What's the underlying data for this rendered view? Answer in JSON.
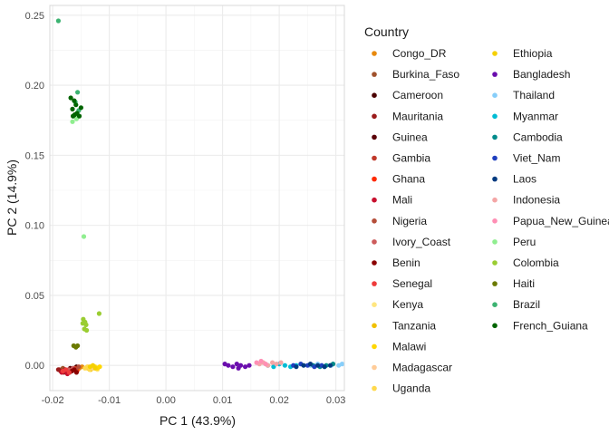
{
  "chart_data": {
    "type": "scatter",
    "xlabel": "PC 1 (43.9%)",
    "ylabel": "PC 2 (14.9%)",
    "xlim": [
      -0.0205,
      0.0315
    ],
    "ylim": [
      -0.018,
      0.257
    ],
    "x_ticks": [
      -0.02,
      -0.01,
      0.0,
      0.01,
      0.02,
      0.03
    ],
    "x_tick_labels": [
      "-0.02",
      "-0.01",
      "0.00",
      "0.01",
      "0.02",
      "0.03"
    ],
    "y_ticks": [
      0.0,
      0.05,
      0.1,
      0.15,
      0.2,
      0.25
    ],
    "y_tick_labels": [
      "0.00",
      "0.05",
      "0.10",
      "0.15",
      "0.20",
      "0.25"
    ],
    "grid": true,
    "legend_title": "Country",
    "legend_position": "right",
    "series": [
      {
        "name": "Congo_DR",
        "color": "#e8890c",
        "points": [
          [
            -0.0153,
            -0.002
          ],
          [
            -0.0148,
            -0.001
          ],
          [
            -0.0156,
            -0.003
          ]
        ]
      },
      {
        "name": "Burkina_Faso",
        "color": "#a0522d",
        "points": [
          [
            -0.0188,
            -0.003
          ],
          [
            -0.0182,
            -0.002
          ],
          [
            -0.0176,
            -0.004
          ]
        ]
      },
      {
        "name": "Cameroon",
        "color": "#4b0000",
        "points": [
          [
            -0.016,
            -0.002
          ],
          [
            -0.0158,
            -0.001
          ],
          [
            -0.0163,
            -0.003
          ]
        ]
      },
      {
        "name": "Mauritania",
        "color": "#9b1b1b",
        "points": [
          [
            -0.0186,
            -0.004
          ],
          [
            -0.018,
            -0.005
          ],
          [
            -0.019,
            -0.003
          ]
        ]
      },
      {
        "name": "Guinea",
        "color": "#5a0008",
        "points": [
          [
            -0.0178,
            -0.003
          ],
          [
            -0.0172,
            -0.004
          ],
          [
            -0.0169,
            -0.002
          ]
        ]
      },
      {
        "name": "Gambia",
        "color": "#c0392b",
        "points": [
          [
            -0.0175,
            -0.004
          ],
          [
            -0.017,
            -0.005
          ],
          [
            -0.0166,
            -0.003
          ]
        ]
      },
      {
        "name": "Ghana",
        "color": "#ff2a00",
        "points": [
          [
            -0.0165,
            -0.003
          ],
          [
            -0.0161,
            -0.002
          ],
          [
            -0.0157,
            -0.004
          ]
        ]
      },
      {
        "name": "Mali",
        "color": "#c8102e",
        "points": [
          [
            -0.0184,
            -0.005
          ],
          [
            -0.0179,
            -0.004
          ],
          [
            -0.0174,
            -0.006
          ]
        ]
      },
      {
        "name": "Nigeria",
        "color": "#b54e3a",
        "points": [
          [
            -0.0163,
            -0.002
          ],
          [
            -0.0159,
            -0.003
          ],
          [
            -0.0154,
            -0.001
          ]
        ]
      },
      {
        "name": "Ivory_Coast",
        "color": "#cd5c5c",
        "points": [
          [
            -0.0172,
            -0.003
          ],
          [
            -0.0168,
            -0.004
          ],
          [
            -0.0164,
            -0.002
          ]
        ]
      },
      {
        "name": "Benin",
        "color": "#8b0000",
        "points": [
          [
            -0.0166,
            -0.004
          ],
          [
            -0.0162,
            -0.003
          ],
          [
            -0.0158,
            -0.005
          ]
        ]
      },
      {
        "name": "Senegal",
        "color": "#ee3b3b",
        "points": [
          [
            -0.0182,
            -0.004
          ],
          [
            -0.0177,
            -0.003
          ],
          [
            -0.0171,
            -0.005
          ]
        ]
      },
      {
        "name": "Kenya",
        "color": "#ffe680",
        "points": [
          [
            -0.0128,
            -0.002
          ],
          [
            -0.0124,
            -0.001
          ],
          [
            -0.0121,
            -0.003
          ]
        ]
      },
      {
        "name": "Tanzania",
        "color": "#f0c000",
        "points": [
          [
            -0.0138,
            -0.002
          ],
          [
            -0.0133,
            -0.003
          ],
          [
            -0.013,
            -0.001
          ]
        ]
      },
      {
        "name": "Malawi",
        "color": "#ffd700",
        "points": [
          [
            -0.0126,
            -0.001
          ],
          [
            -0.0121,
            -0.002
          ],
          [
            -0.0117,
            -0.001
          ]
        ]
      },
      {
        "name": "Madagascar",
        "color": "#ffcc99",
        "points": [
          [
            -0.0137,
            -0.001
          ],
          [
            -0.0132,
            -0.002
          ]
        ]
      },
      {
        "name": "Uganda",
        "color": "#ffd94d",
        "points": [
          [
            -0.0143,
            -0.002
          ],
          [
            -0.0139,
            -0.001
          ],
          [
            -0.0135,
            -0.003
          ]
        ]
      },
      {
        "name": "Ethiopia",
        "color": "#f5d000",
        "points": [
          [
            -0.0134,
            -0.001
          ],
          [
            -0.0129,
            0.0
          ],
          [
            -0.0125,
            -0.002
          ]
        ]
      },
      {
        "name": "Bangladesh",
        "color": "#6a0dad",
        "points": [
          [
            0.011,
            0.0
          ],
          [
            0.0118,
            -0.001
          ],
          [
            0.0125,
            0.001
          ],
          [
            0.0132,
            0.0
          ],
          [
            0.014,
            -0.001
          ],
          [
            0.0147,
            0.0
          ],
          [
            0.0104,
            0.001
          ],
          [
            0.0128,
            -0.002
          ]
        ]
      },
      {
        "name": "Thailand",
        "color": "#87cefa",
        "points": [
          [
            0.0255,
            0.0
          ],
          [
            0.0268,
            0.001
          ],
          [
            0.028,
            -0.001
          ],
          [
            0.0292,
            0.0
          ],
          [
            0.0305,
            0.0
          ],
          [
            0.0311,
            0.001
          ]
        ]
      },
      {
        "name": "Myanmar",
        "color": "#00bcd4",
        "points": [
          [
            0.018,
            0.0
          ],
          [
            0.019,
            -0.001
          ],
          [
            0.02,
            0.001
          ],
          [
            0.021,
            0.0
          ],
          [
            0.022,
            -0.001
          ],
          [
            0.023,
            0.0
          ]
        ]
      },
      {
        "name": "Cambodia",
        "color": "#008b8b",
        "points": [
          [
            0.026,
            0.0
          ],
          [
            0.0272,
            -0.001
          ],
          [
            0.0283,
            0.0
          ],
          [
            0.0295,
            0.001
          ]
        ]
      },
      {
        "name": "Viet_Nam",
        "color": "#1f3fbf",
        "points": [
          [
            0.0225,
            0.0
          ],
          [
            0.0238,
            0.001
          ],
          [
            0.025,
            0.0
          ],
          [
            0.0262,
            -0.001
          ],
          [
            0.0275,
            0.0
          ]
        ]
      },
      {
        "name": "Laos",
        "color": "#003a80",
        "points": [
          [
            0.023,
            -0.001
          ],
          [
            0.0243,
            0.0
          ],
          [
            0.0255,
            0.001
          ],
          [
            0.0268,
            0.0
          ],
          [
            0.028,
            -0.001
          ],
          [
            0.029,
            0.0
          ]
        ]
      },
      {
        "name": "Indonesia",
        "color": "#f4a6a6",
        "points": [
          [
            0.0165,
            0.001
          ],
          [
            0.0172,
            0.002
          ],
          [
            0.018,
            0.0
          ],
          [
            0.0188,
            0.002
          ],
          [
            0.0195,
            0.001
          ],
          [
            0.0203,
            0.002
          ]
        ]
      },
      {
        "name": "Papua_New_Guinea",
        "color": "#ff8fb5",
        "points": [
          [
            0.016,
            0.002
          ],
          [
            0.0168,
            0.003
          ],
          [
            0.0176,
            0.001
          ]
        ]
      },
      {
        "name": "Peru",
        "color": "#90ee90",
        "points": [
          [
            -0.0165,
            0.174
          ],
          [
            -0.0158,
            0.176
          ],
          [
            -0.0145,
            0.092
          ]
        ]
      },
      {
        "name": "Colombia",
        "color": "#9acd32",
        "points": [
          [
            -0.0146,
            0.033
          ],
          [
            -0.0143,
            0.031
          ],
          [
            -0.0141,
            0.029
          ],
          [
            -0.0144,
            0.026
          ],
          [
            -0.014,
            0.025
          ],
          [
            -0.0147,
            0.03
          ],
          [
            -0.0118,
            0.037
          ]
        ]
      },
      {
        "name": "Haiti",
        "color": "#6b7a00",
        "points": [
          [
            -0.0163,
            0.014
          ],
          [
            -0.0159,
            0.013
          ],
          [
            -0.0156,
            0.014
          ]
        ]
      },
      {
        "name": "Brazil",
        "color": "#3cb371",
        "points": [
          [
            -0.019,
            0.246
          ],
          [
            -0.0156,
            0.195
          ],
          [
            -0.016,
            0.188
          ],
          [
            -0.0154,
            0.182
          ]
        ]
      },
      {
        "name": "French_Guiana",
        "color": "#006400",
        "points": [
          [
            -0.0168,
            0.191
          ],
          [
            -0.0162,
            0.189
          ],
          [
            -0.0159,
            0.186
          ],
          [
            -0.0165,
            0.183
          ],
          [
            -0.0157,
            0.18
          ],
          [
            -0.0153,
            0.178
          ],
          [
            -0.0161,
            0.179
          ],
          [
            -0.015,
            0.184
          ],
          [
            -0.0164,
            0.178
          ]
        ]
      }
    ]
  }
}
